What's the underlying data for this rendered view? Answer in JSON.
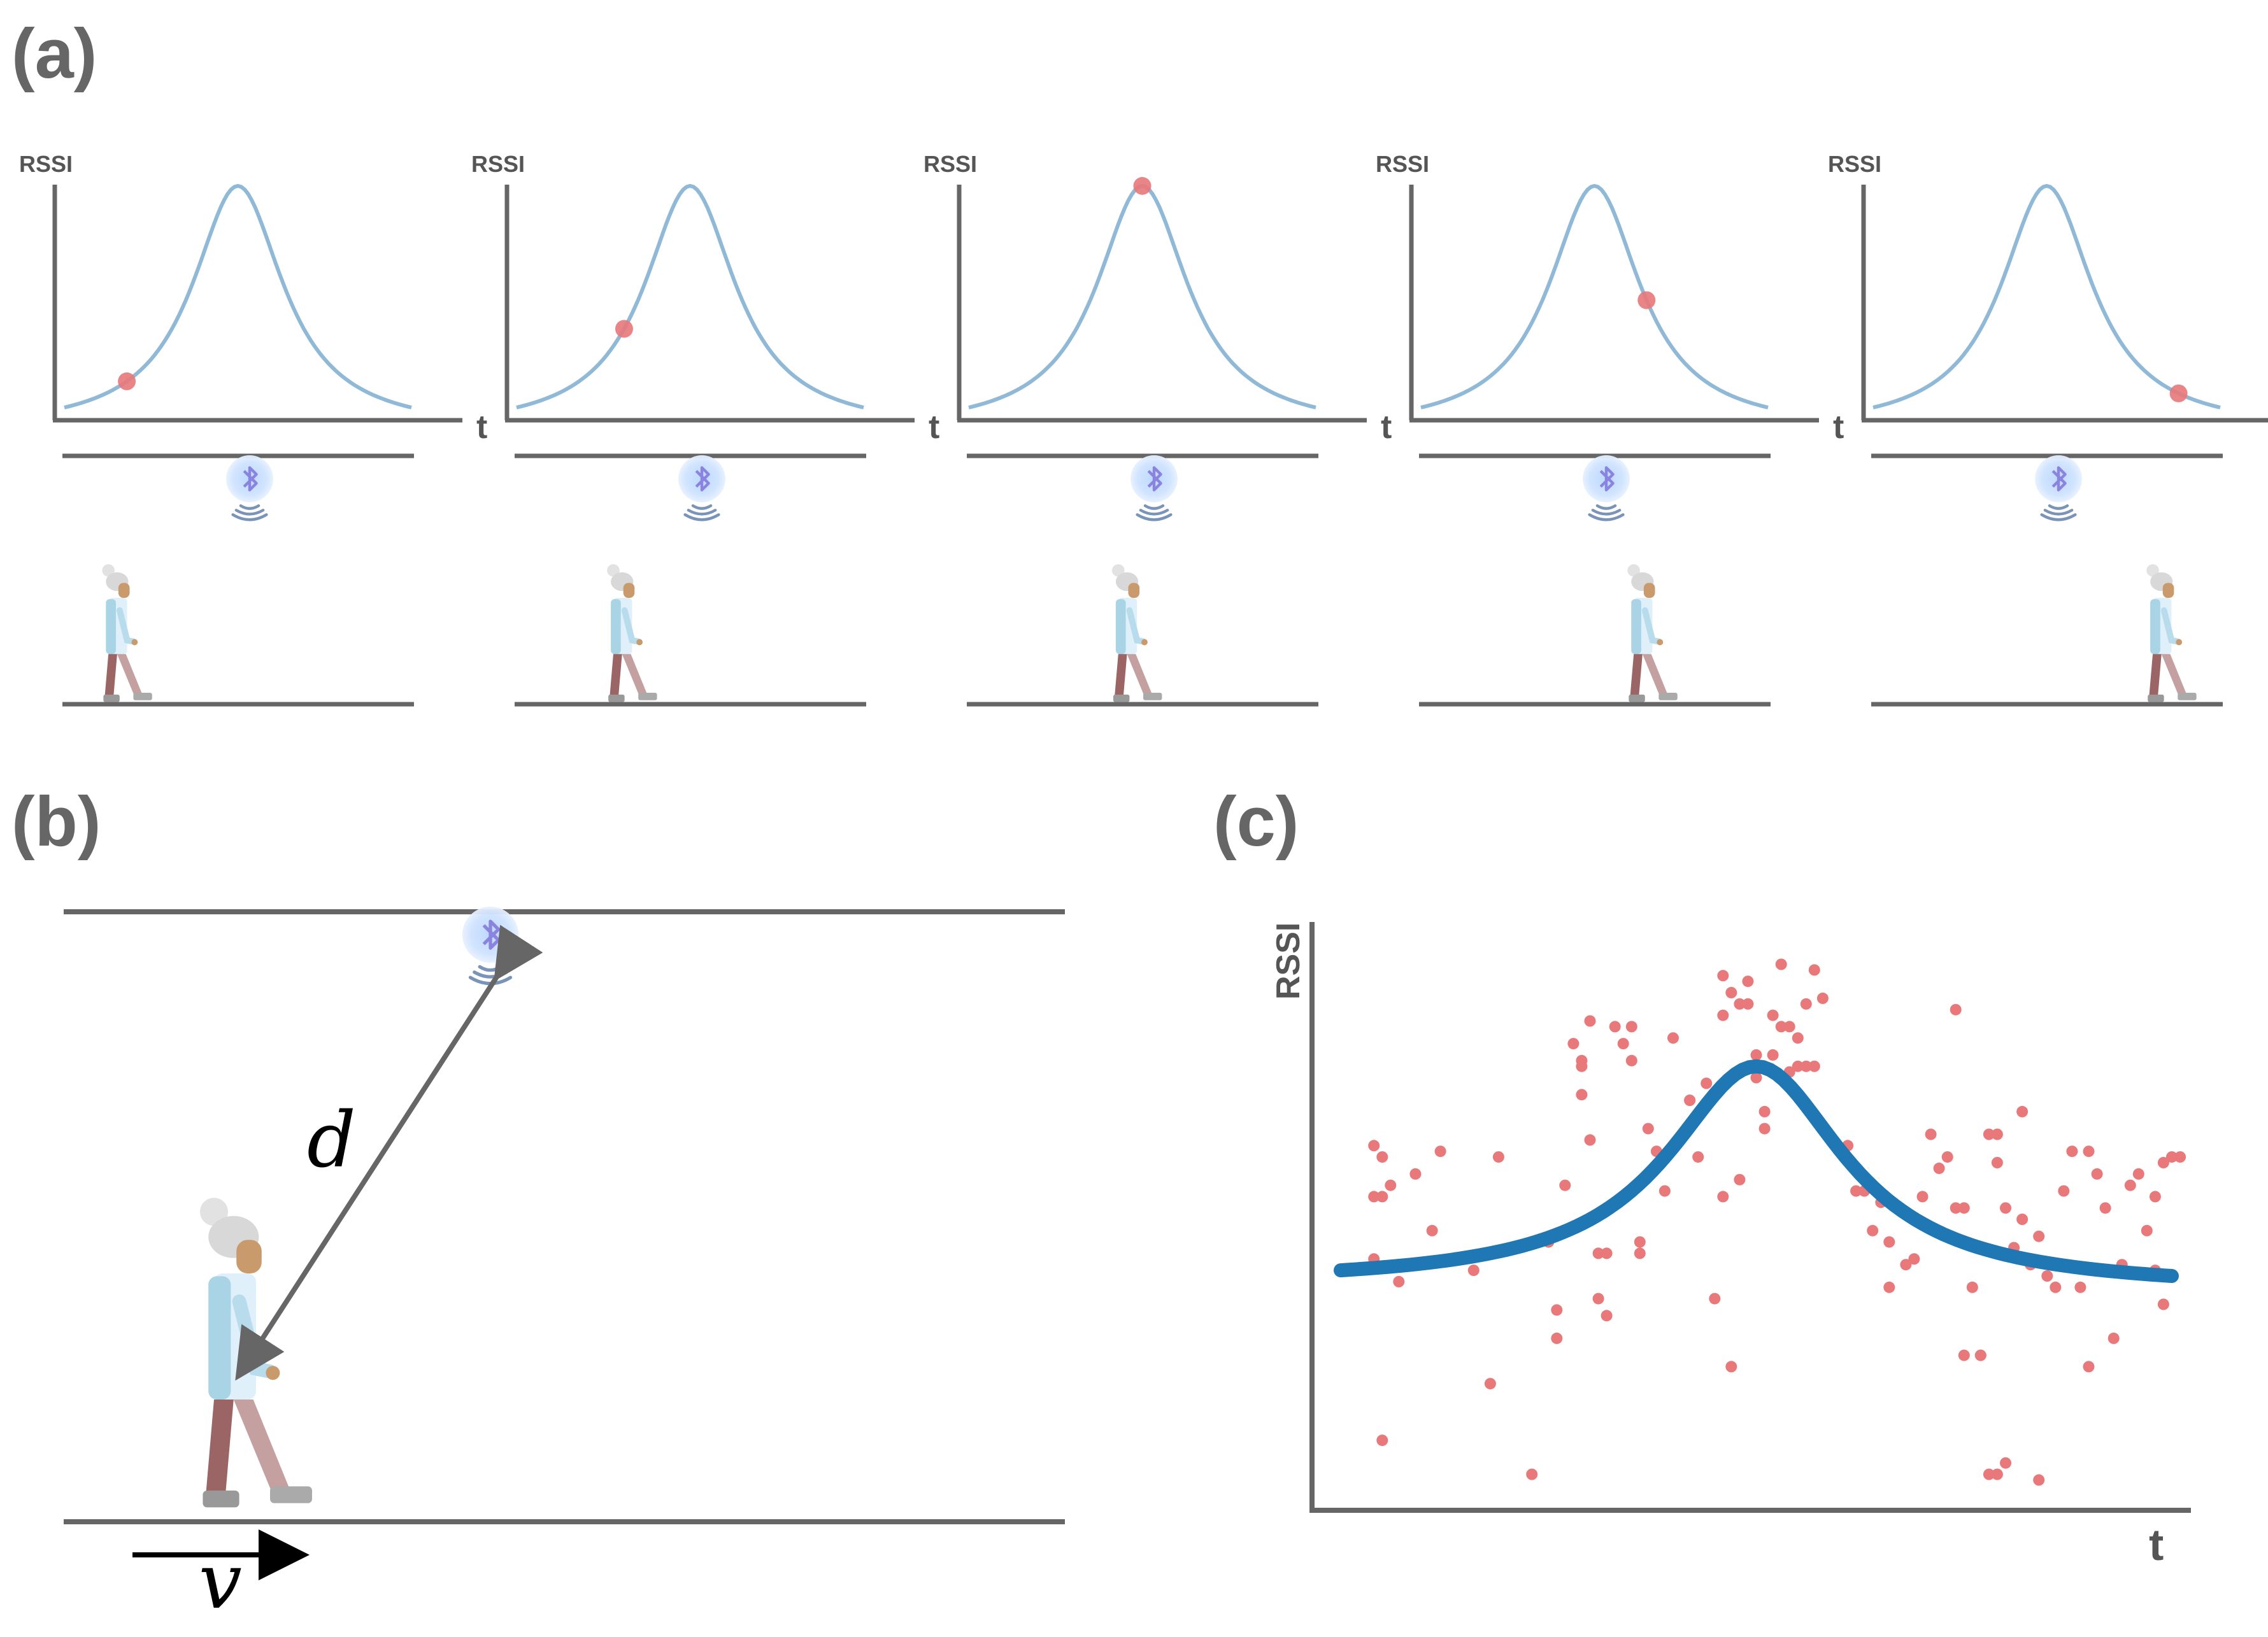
{
  "panel_labels": {
    "a": "(a)",
    "b": "(b)",
    "c": "(c)"
  },
  "panel_a": {
    "ylabel": "RSSI",
    "xlabel": "t",
    "frames": [
      {
        "walker_position": 0.15,
        "marker_t": 0.18
      },
      {
        "walker_position": 0.3,
        "marker_t": 0.31
      },
      {
        "walker_position": 0.45,
        "marker_t": 0.5
      },
      {
        "walker_position": 0.63,
        "marker_t": 0.65
      },
      {
        "walker_position": 0.82,
        "marker_t": 0.88
      }
    ],
    "colors": {
      "curve": "#8fb9d6",
      "marker": "#e8787a",
      "axis": "#666666"
    }
  },
  "panel_b": {
    "distance_label": "d",
    "velocity_label": "v",
    "colors": {
      "lines": "#666666",
      "arrow": "#000000"
    }
  },
  "chart_data": {
    "type": "scatter",
    "title": "",
    "xlabel": "t",
    "ylabel": "RSSI",
    "xlim": [
      0,
      1
    ],
    "ylim": [
      0,
      1
    ],
    "points": [
      [
        0.04,
        0.63
      ],
      [
        0.05,
        0.61
      ],
      [
        0.04,
        0.54
      ],
      [
        0.05,
        0.54
      ],
      [
        0.06,
        0.56
      ],
      [
        0.04,
        0.43
      ],
      [
        0.09,
        0.58
      ],
      [
        0.07,
        0.39
      ],
      [
        0.11,
        0.48
      ],
      [
        0.12,
        0.62
      ],
      [
        0.16,
        0.41
      ],
      [
        0.18,
        0.21
      ],
      [
        0.19,
        0.61
      ],
      [
        0.05,
        0.11
      ],
      [
        0.25,
        0.46
      ],
      [
        0.26,
        0.34
      ],
      [
        0.26,
        0.29
      ],
      [
        0.27,
        0.56
      ],
      [
        0.28,
        0.81
      ],
      [
        0.29,
        0.77
      ],
      [
        0.3,
        0.85
      ],
      [
        0.3,
        0.64
      ],
      [
        0.31,
        0.36
      ],
      [
        0.31,
        0.44
      ],
      [
        0.32,
        0.33
      ],
      [
        0.32,
        0.44
      ],
      [
        0.33,
        0.84
      ],
      [
        0.34,
        0.81
      ],
      [
        0.35,
        0.84
      ],
      [
        0.35,
        0.78
      ],
      [
        0.36,
        0.44
      ],
      [
        0.36,
        0.46
      ],
      [
        0.37,
        0.66
      ],
      [
        0.38,
        0.62
      ],
      [
        0.39,
        0.55
      ],
      [
        0.4,
        0.82
      ],
      [
        0.42,
        0.71
      ],
      [
        0.42,
        0.71
      ],
      [
        0.43,
        0.61
      ],
      [
        0.44,
        0.74
      ],
      [
        0.45,
        0.36
      ],
      [
        0.46,
        0.54
      ],
      [
        0.47,
        0.24
      ],
      [
        0.48,
        0.57
      ],
      [
        0.29,
        0.72
      ],
      [
        0.23,
        0.05
      ],
      [
        0.29,
        0.78
      ],
      [
        0.46,
        0.86
      ],
      [
        0.46,
        0.93
      ],
      [
        0.47,
        0.9
      ],
      [
        0.48,
        0.88
      ],
      [
        0.49,
        0.88
      ],
      [
        0.49,
        0.92
      ],
      [
        0.5,
        0.79
      ],
      [
        0.5,
        0.75
      ],
      [
        0.51,
        0.69
      ],
      [
        0.51,
        0.66
      ],
      [
        0.52,
        0.86
      ],
      [
        0.52,
        0.79
      ],
      [
        0.53,
        0.84
      ],
      [
        0.54,
        0.84
      ],
      [
        0.54,
        0.76
      ],
      [
        0.55,
        0.82
      ],
      [
        0.55,
        0.77
      ],
      [
        0.56,
        0.77
      ],
      [
        0.56,
        0.88
      ],
      [
        0.57,
        0.77
      ],
      [
        0.57,
        0.94
      ],
      [
        0.58,
        0.89
      ],
      [
        0.53,
        0.95
      ],
      [
        0.61,
        0.63
      ],
      [
        0.62,
        0.55
      ],
      [
        0.63,
        0.55
      ],
      [
        0.64,
        0.48
      ],
      [
        0.65,
        0.53
      ],
      [
        0.66,
        0.38
      ],
      [
        0.66,
        0.46
      ],
      [
        0.68,
        0.42
      ],
      [
        0.69,
        0.43
      ],
      [
        0.7,
        0.54
      ],
      [
        0.71,
        0.65
      ],
      [
        0.72,
        0.59
      ],
      [
        0.73,
        0.61
      ],
      [
        0.74,
        0.52
      ],
      [
        0.75,
        0.26
      ],
      [
        0.75,
        0.52
      ],
      [
        0.76,
        0.38
      ],
      [
        0.77,
        0.26
      ],
      [
        0.78,
        0.65
      ],
      [
        0.79,
        0.6
      ],
      [
        0.8,
        0.52
      ],
      [
        0.81,
        0.45
      ],
      [
        0.82,
        0.5
      ],
      [
        0.83,
        0.42
      ],
      [
        0.84,
        0.47
      ],
      [
        0.85,
        0.4
      ],
      [
        0.86,
        0.38
      ],
      [
        0.87,
        0.55
      ],
      [
        0.88,
        0.62
      ],
      [
        0.89,
        0.38
      ],
      [
        0.9,
        0.24
      ],
      [
        0.9,
        0.62
      ],
      [
        0.91,
        0.58
      ],
      [
        0.92,
        0.52
      ],
      [
        0.93,
        0.29
      ],
      [
        0.94,
        0.42
      ],
      [
        0.95,
        0.56
      ],
      [
        0.96,
        0.58
      ],
      [
        0.97,
        0.48
      ],
      [
        0.98,
        0.41
      ],
      [
        0.98,
        0.54
      ],
      [
        0.99,
        0.6
      ],
      [
        0.99,
        0.35
      ],
      [
        1.0,
        0.61
      ],
      [
        1.01,
        0.61
      ],
      [
        0.82,
        0.69
      ],
      [
        0.79,
        0.65
      ],
      [
        0.77,
        0.26
      ],
      [
        0.74,
        0.87
      ],
      [
        0.79,
        0.05
      ],
      [
        0.78,
        0.05
      ],
      [
        0.84,
        0.04
      ],
      [
        0.8,
        0.07
      ]
    ],
    "fit_curve": {
      "peak_t": 0.5,
      "peak_value": 0.77,
      "left_value": 0.41,
      "right_value": 0.4
    },
    "grid": false,
    "colors": {
      "points": "#e8787a",
      "curve": "#1f77b4",
      "axis": "#666666"
    }
  }
}
